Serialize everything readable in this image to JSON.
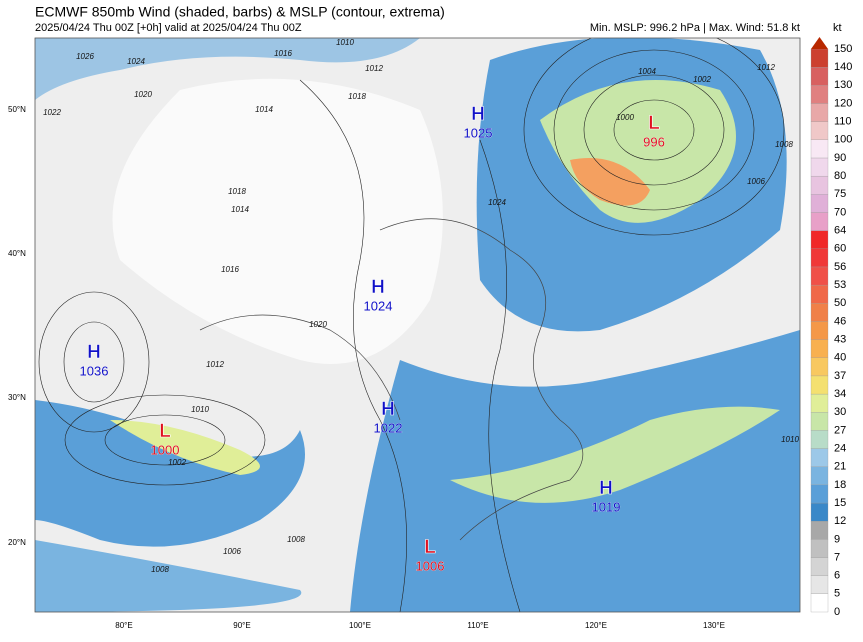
{
  "header": {
    "title": "ECMWF 850mb Wind (shaded, barbs) & MSLP (contour, extrema)",
    "subtitle": "2025/04/24 Thu 00Z [+0h] valid at 2025/04/24 Thu 00Z",
    "stats": "Min. MSLP: 996.2 hPa | Max. Wind: 51.8 kt"
  },
  "colorbar": {
    "unit": "kt",
    "labels": [
      "0",
      "5",
      "6",
      "7",
      "9",
      "12",
      "15",
      "18",
      "21",
      "24",
      "27",
      "30",
      "34",
      "37",
      "40",
      "43",
      "46",
      "50",
      "53",
      "56",
      "60",
      "64",
      "70",
      "75",
      "80",
      "90",
      "100",
      "110",
      "120",
      "130",
      "140",
      "150"
    ]
  },
  "map": {
    "lat_labels": [
      "50°N",
      "40°N",
      "30°N",
      "20°N"
    ],
    "lon_labels": [
      "80°E",
      "90°E",
      "100°E",
      "110°E",
      "120°E",
      "130°E"
    ],
    "centers": [
      {
        "kind": "H",
        "value": "1025"
      },
      {
        "kind": "L",
        "value": "996"
      },
      {
        "kind": "H",
        "value": "1024"
      },
      {
        "kind": "H",
        "value": "1036"
      },
      {
        "kind": "H",
        "value": "1022"
      },
      {
        "kind": "L",
        "value": "1000"
      },
      {
        "kind": "H",
        "value": "1019"
      },
      {
        "kind": "L",
        "value": "1006"
      }
    ],
    "contour_labels": [
      "1026",
      "1024",
      "1020",
      "1022",
      "1016",
      "1018",
      "1014",
      "1012",
      "1010",
      "1004",
      "1002",
      "1000",
      "1008",
      "1006",
      "1024",
      "1018",
      "1016",
      "1020",
      "1012",
      "1010",
      "1008",
      "1006",
      "1002",
      "1014",
      "1012",
      "1008",
      "1010"
    ]
  }
}
